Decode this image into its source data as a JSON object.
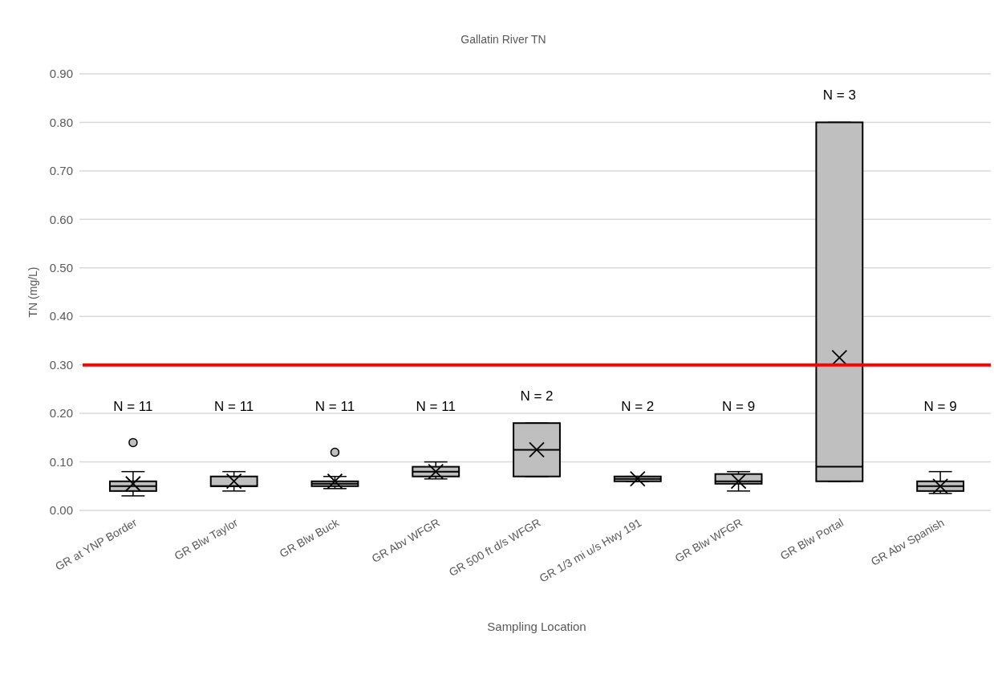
{
  "chart_data": {
    "type": "box",
    "title": "Gallatin River TN",
    "xlabel": "Sampling Location",
    "ylabel": "TN (mg/L)",
    "categories": [
      "GR at YNP Border",
      "GR Blw Taylor",
      "GR Blw Buck",
      "GR Abv WFGR",
      "GR 500 ft d/s WFGR",
      "GR 1/3 mi u/s Hwy 191",
      "GR Blw WFGR",
      "GR Blw Portal",
      "GR Abv Spanish"
    ],
    "color": "#bfbfbf",
    "boxes": [
      {
        "low": 0.03,
        "q1": 0.04,
        "median": 0.05,
        "q3": 0.06,
        "high": 0.08,
        "mean": 0.055,
        "outliers": [
          0.14
        ]
      },
      {
        "low": 0.04,
        "q1": 0.05,
        "median": 0.05,
        "q3": 0.07,
        "high": 0.08,
        "mean": 0.06
      },
      {
        "low": 0.045,
        "q1": 0.05,
        "median": 0.055,
        "q3": 0.06,
        "high": 0.07,
        "mean": 0.06,
        "outliers": [
          0.12
        ]
      },
      {
        "low": 0.065,
        "q1": 0.07,
        "median": 0.08,
        "q3": 0.09,
        "high": 0.1,
        "mean": 0.08
      },
      {
        "low": 0.07,
        "q1": 0.07,
        "median": 0.125,
        "q3": 0.18,
        "high": 0.18,
        "mean": 0.125
      },
      {
        "low": 0.06,
        "q1": 0.06,
        "median": 0.065,
        "q3": 0.07,
        "high": 0.07,
        "mean": 0.065
      },
      {
        "low": 0.04,
        "q1": 0.055,
        "median": 0.06,
        "q3": 0.075,
        "high": 0.08,
        "mean": 0.06
      },
      {
        "low": 0.06,
        "q1": 0.06,
        "median": 0.09,
        "q3": 0.8,
        "high": 0.8,
        "mean": 0.315
      },
      {
        "low": 0.035,
        "q1": 0.04,
        "median": 0.05,
        "q3": 0.06,
        "high": 0.08,
        "mean": 0.05
      }
    ],
    "ylim": [
      0,
      0.9
    ],
    "yticks": [
      {
        "value": 0,
        "label": "0.00"
      },
      {
        "value": 0.1,
        "label": "0.10"
      },
      {
        "value": 0.2,
        "label": "0.20"
      },
      {
        "value": 0.3,
        "label": "0.30"
      },
      {
        "value": 0.4,
        "label": "0.40"
      },
      {
        "value": 0.5,
        "label": "0.50"
      },
      {
        "value": 0.6,
        "label": "0.60"
      },
      {
        "value": 0.7,
        "label": "0.70"
      },
      {
        "value": 0.8,
        "label": "0.80"
      },
      {
        "value": 0.9,
        "label": "0.90"
      }
    ],
    "grid": "y",
    "ref_lines": [
      {
        "axis": "y",
        "value": 0.3,
        "color": "#ff0000"
      }
    ],
    "annotations": [
      "N = 11",
      "N = 11",
      "N = 11",
      "N = 11",
      "N = 2",
      "N = 2",
      "N = 9",
      "N = 3",
      "N = 9"
    ]
  }
}
